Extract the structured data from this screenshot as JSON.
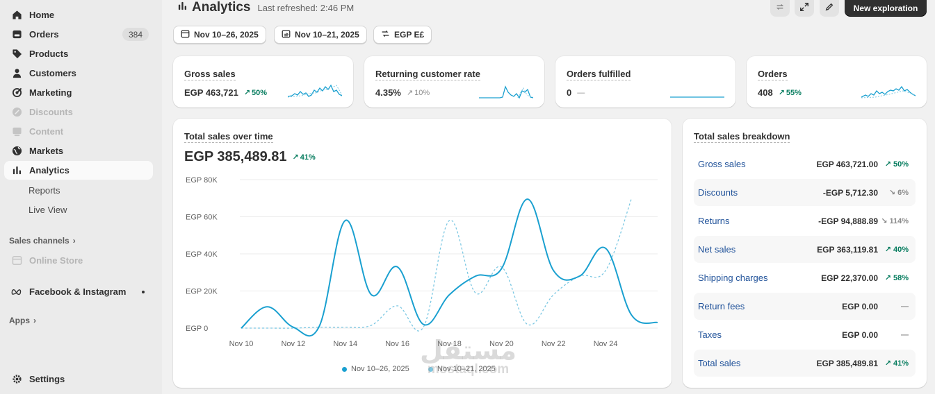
{
  "sidebar": {
    "items": [
      {
        "label": "Home",
        "icon": "home-icon"
      },
      {
        "label": "Orders",
        "icon": "orders-icon",
        "badge": "384"
      },
      {
        "label": "Products",
        "icon": "tag-icon"
      },
      {
        "label": "Customers",
        "icon": "person-icon"
      },
      {
        "label": "Marketing",
        "icon": "target-icon"
      },
      {
        "label": "Discounts",
        "icon": "discount-icon"
      },
      {
        "label": "Content",
        "icon": "content-icon"
      },
      {
        "label": "Markets",
        "icon": "globe-icon"
      },
      {
        "label": "Analytics",
        "icon": "bar-chart-icon"
      }
    ],
    "sub_items": [
      "Reports",
      "Live View"
    ],
    "sales_channels_label": "Sales channels",
    "online_store_label": "Online Store",
    "facebook_label": "Facebook & Instagram",
    "apps_label": "Apps",
    "settings_label": "Settings"
  },
  "header": {
    "title": "Analytics",
    "last_refreshed": "Last refreshed: 2:46 PM",
    "new_exploration": "New exploration"
  },
  "filters": {
    "date_range": "Nov 10–26, 2025",
    "compare_range": "Nov 10–21, 2025",
    "currency": "EGP E£"
  },
  "metrics": [
    {
      "title": "Gross sales",
      "value": "EGP 463,721",
      "change": "50%",
      "trend": "up"
    },
    {
      "title": "Returning customer rate",
      "value": "4.35%",
      "change": "10%",
      "trend": "neutral-up"
    },
    {
      "title": "Orders fulfilled",
      "value": "0",
      "change": "—",
      "trend": "none"
    },
    {
      "title": "Orders",
      "value": "408",
      "change": "55%",
      "trend": "up"
    }
  ],
  "total_sales": {
    "title": "Total sales over time",
    "value": "EGP 385,489.81",
    "change": "41%"
  },
  "chart_data": {
    "type": "line",
    "title": "Total sales over time",
    "y_ticks": [
      "EGP 80K",
      "EGP 60K",
      "EGP 40K",
      "EGP 20K",
      "EGP 0"
    ],
    "x_ticks": [
      "Nov 10",
      "Nov 12",
      "Nov 14",
      "Nov 16",
      "Nov 18",
      "Nov 20",
      "Nov 22",
      "Nov 24"
    ],
    "ylim": [
      0,
      80000
    ],
    "x_days": [
      10,
      11,
      12,
      13,
      14,
      15,
      16,
      17,
      18,
      19,
      20,
      21,
      22,
      23,
      24,
      25,
      26
    ],
    "series": [
      {
        "name": "Nov 10–26, 2025",
        "color": "#1aa0d0",
        "dashed": false,
        "values": [
          0,
          11500,
          500,
          1000,
          58000,
          18000,
          33000,
          2000,
          18000,
          28000,
          32000,
          69500,
          31000,
          28000,
          43000,
          7000,
          3000
        ]
      },
      {
        "name": "Nov 10–21, 2025",
        "color": "#7cc8e3",
        "dashed": true,
        "values": [
          0,
          0,
          0,
          500,
          500,
          1500,
          12000,
          500,
          58000,
          19000,
          33000,
          2000,
          18000,
          28000,
          31000,
          70000,
          null
        ]
      }
    ],
    "grid": true,
    "legend": "bottom"
  },
  "breakdown": {
    "title": "Total sales breakdown",
    "rows": [
      {
        "label": "Gross sales",
        "value": "EGP 463,721.00",
        "change": "50%",
        "dir": "up"
      },
      {
        "label": "Discounts",
        "value": "-EGP 5,712.30",
        "change": "6%",
        "dir": "down"
      },
      {
        "label": "Returns",
        "value": "-EGP 94,888.89",
        "change": "114%",
        "dir": "down"
      },
      {
        "label": "Net sales",
        "value": "EGP 363,119.81",
        "change": "40%",
        "dir": "up"
      },
      {
        "label": "Shipping charges",
        "value": "EGP 22,370.00",
        "change": "58%",
        "dir": "up"
      },
      {
        "label": "Return fees",
        "value": "EGP 0.00",
        "change": "—",
        "dir": "none"
      },
      {
        "label": "Taxes",
        "value": "EGP 0.00",
        "change": "—",
        "dir": "none"
      },
      {
        "label": "Total sales",
        "value": "EGP 385,489.81",
        "change": "41%",
        "dir": "up"
      }
    ]
  },
  "watermark": {
    "arabic": "مستقل",
    "latin": "mostaql.com"
  },
  "colors": {
    "accent": "#1aa0d0",
    "positive": "#047b5d",
    "link": "#1f5199"
  }
}
